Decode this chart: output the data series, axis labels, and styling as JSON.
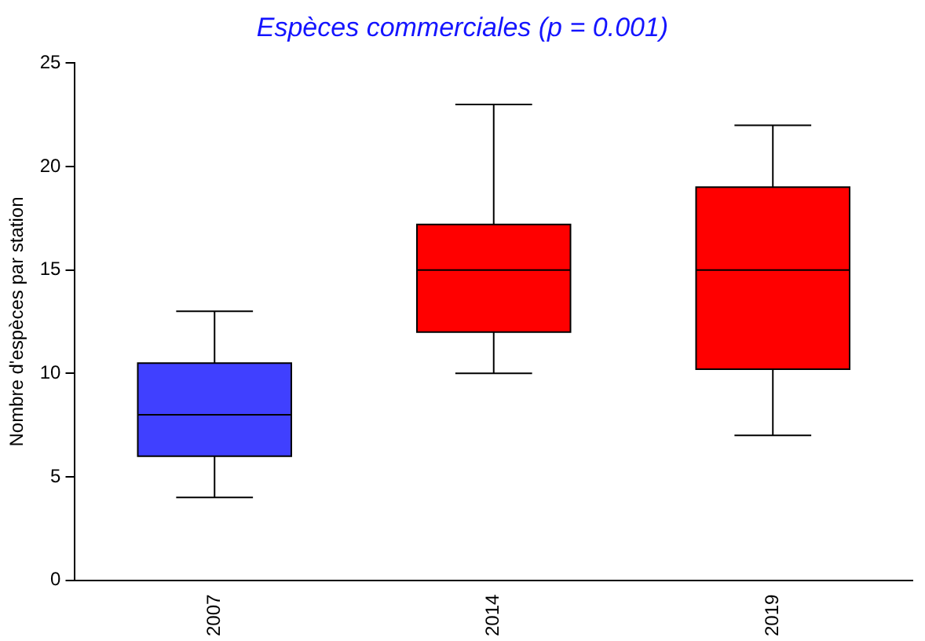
{
  "chart_data": {
    "type": "box",
    "title": "Espèces commerciales (p = 0.001)",
    "ylabel": "Nombre d'espèces par station",
    "categories": [
      "2007",
      "2014",
      "2019"
    ],
    "colors": [
      "#4040ff",
      "#ff0000",
      "#ff0000"
    ],
    "boxes": [
      {
        "low": 4,
        "q1": 6,
        "median": 8,
        "q3": 10.5,
        "high": 13
      },
      {
        "low": 10,
        "q1": 12,
        "median": 15,
        "q3": 17.2,
        "high": 23
      },
      {
        "low": 7,
        "q1": 10.2,
        "median": 15,
        "q3": 19,
        "high": 22
      }
    ],
    "ylim": [
      0,
      25
    ],
    "yticks": [
      0,
      5,
      10,
      15,
      20,
      25
    ],
    "grid": false,
    "legend": false
  }
}
